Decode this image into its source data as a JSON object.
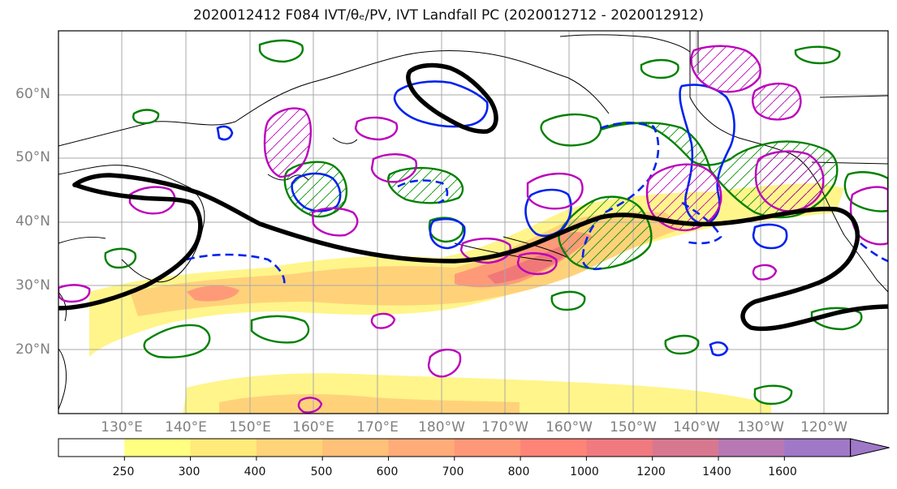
{
  "title": "2020012412 F084 IVT/θₑ/PV, IVT Landfall PC (2020012712 - 2020012912)",
  "latitude_labels": [
    "60°N",
    "50°N",
    "40°N",
    "30°N",
    "20°N"
  ],
  "longitude_labels": [
    "130°E",
    "140°E",
    "150°E",
    "160°E",
    "170°E",
    "180°W",
    "170°W",
    "160°W",
    "150°W",
    "140°W",
    "130°W",
    "120°W"
  ],
  "colorbar": {
    "ticks": [
      "250",
      "300",
      "400",
      "500",
      "600",
      "700",
      "800",
      "1000",
      "1200",
      "1400",
      "1600"
    ],
    "colors": [
      "#ffffff",
      "#ffff80",
      "#ffea7a",
      "#ffd478",
      "#ffc078",
      "#ffac78",
      "#ff9878",
      "#ff8478",
      "#f07a80",
      "#d87890",
      "#b878b4",
      "#a078c8"
    ]
  },
  "field_colors": {
    "ivt_light": "#fff58a",
    "ivt_mid": "#ffd27a",
    "ivt_high": "#ff9a78",
    "ivt_peak": "#f07878",
    "theta_contour": "#000000",
    "pv_contour": "#008000",
    "blue_contour": "#0022ee",
    "magenta_contour": "#bb00bb"
  }
}
